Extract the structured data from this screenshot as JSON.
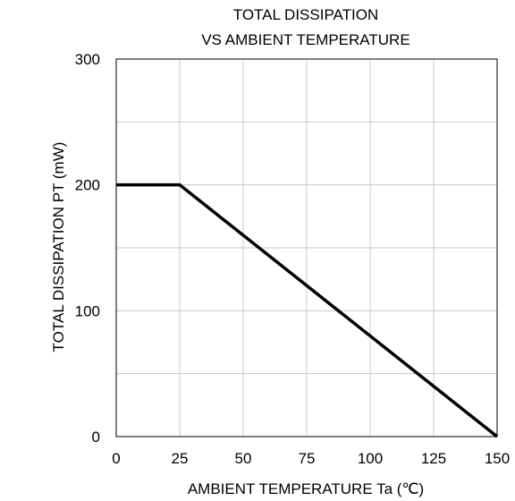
{
  "chart_data": {
    "type": "line",
    "title": "TOTAL DISSIPATION",
    "subtitle": "VS AMBIENT TEMPERATURE",
    "xlabel": "AMBIENT TEMPERATURE  Ta (℃)",
    "ylabel": "TOTAL DISSIPATION  PT (mW)",
    "xlim": [
      0,
      150
    ],
    "ylim": [
      0,
      300
    ],
    "xticks": [
      0,
      25,
      50,
      75,
      100,
      125,
      150
    ],
    "yticks": [
      0,
      100,
      200,
      300
    ],
    "x_gridlines": [
      25,
      50,
      75,
      100,
      125
    ],
    "y_gridlines": [
      50,
      100,
      150,
      200,
      250
    ],
    "grid": true,
    "legend": "none",
    "series": [
      {
        "x": [
          0,
          25,
          150
        ],
        "y": [
          200,
          200,
          0
        ],
        "color": "#000000"
      }
    ]
  }
}
